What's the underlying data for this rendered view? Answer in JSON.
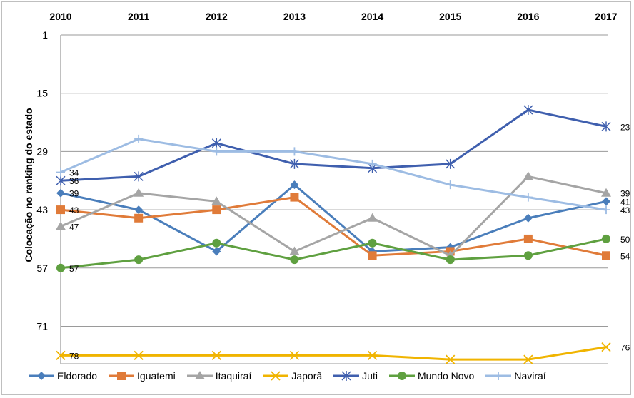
{
  "chart_data": {
    "type": "line",
    "title": "",
    "ylabel": "Colocação no ranking do estado",
    "xlabel": "",
    "x": [
      "2010",
      "2011",
      "2012",
      "2013",
      "2014",
      "2015",
      "2016",
      "2017"
    ],
    "y_ticks": [
      "1",
      "15",
      "29",
      "43",
      "57",
      "71"
    ],
    "y_reversed": true,
    "ylim": [
      1,
      80
    ],
    "grid": "horizontal",
    "legend_position": "bottom",
    "series": [
      {
        "name": "Eldorado",
        "color": "#4a7ebb",
        "marker": "diamond",
        "values": [
          39,
          43,
          53,
          37,
          53,
          52,
          45,
          41
        ]
      },
      {
        "name": "Iguatemi",
        "color": "#e07b39",
        "marker": "square",
        "values": [
          43,
          45,
          43,
          40,
          54,
          53,
          50,
          54
        ]
      },
      {
        "name": "Itaquiraí",
        "color": "#a5a5a5",
        "marker": "triangle",
        "values": [
          47,
          39,
          41,
          53,
          45,
          54,
          35,
          39
        ]
      },
      {
        "name": "Japorã",
        "color": "#f0b400",
        "marker": "x",
        "values": [
          78,
          78,
          78,
          78,
          78,
          79,
          79,
          76
        ]
      },
      {
        "name": "Juti",
        "color": "#3f5fae",
        "marker": "star",
        "values": [
          36,
          35,
          27,
          32,
          33,
          32,
          19,
          23
        ]
      },
      {
        "name": "Mundo Novo",
        "color": "#5fa040",
        "marker": "circle",
        "values": [
          57,
          55,
          51,
          55,
          51,
          55,
          54,
          50
        ]
      },
      {
        "name": "Naviraí",
        "color": "#9dbce3",
        "marker": "plus",
        "values": [
          34,
          26,
          29,
          29,
          32,
          37,
          40,
          43
        ]
      }
    ],
    "data_labels": {
      "first": [
        "39",
        "43",
        "47",
        "78",
        "36",
        "57",
        "34"
      ],
      "last": [
        "41",
        "54",
        "39",
        "76",
        "23",
        "50",
        "43"
      ]
    }
  }
}
